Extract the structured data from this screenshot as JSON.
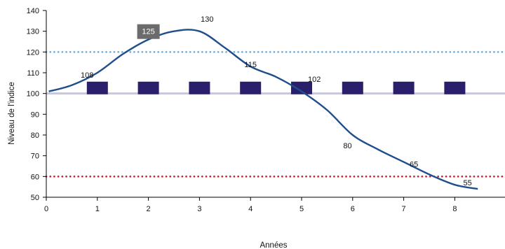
{
  "chart_data": {
    "type": "line",
    "title": "",
    "xlabel": "Années",
    "ylabel": "Niveau de l'indice",
    "xlim": [
      0,
      9
    ],
    "ylim": [
      50,
      140
    ],
    "x_ticks": [
      0,
      1,
      2,
      3,
      4,
      5,
      6,
      7,
      8
    ],
    "y_ticks": [
      50,
      60,
      70,
      80,
      90,
      100,
      110,
      120,
      130,
      140
    ],
    "grid": false,
    "legend": "none",
    "series": [
      {
        "color": "#1f4e8c",
        "points": [
          {
            "x": 0.05,
            "y": 101
          },
          {
            "x": 0.5,
            "y": 104
          },
          {
            "x": 1.0,
            "y": 110
          },
          {
            "x": 1.5,
            "y": 119
          },
          {
            "x": 2.0,
            "y": 126
          },
          {
            "x": 2.5,
            "y": 130
          },
          {
            "x": 3.0,
            "y": 130
          },
          {
            "x": 3.5,
            "y": 122
          },
          {
            "x": 4.0,
            "y": 113
          },
          {
            "x": 4.5,
            "y": 108
          },
          {
            "x": 5.0,
            "y": 101
          },
          {
            "x": 5.5,
            "y": 92
          },
          {
            "x": 6.0,
            "y": 80
          },
          {
            "x": 6.5,
            "y": 73
          },
          {
            "x": 7.0,
            "y": 67
          },
          {
            "x": 7.5,
            "y": 61
          },
          {
            "x": 8.0,
            "y": 56
          },
          {
            "x": 8.45,
            "y": 54
          }
        ]
      }
    ],
    "reference_lines": [
      {
        "y": 120,
        "color": "#6aaee0",
        "style": "dotted"
      },
      {
        "y": 100,
        "color": "#c8c8d8",
        "style": "solid"
      },
      {
        "y": 60,
        "color": "#c0222a",
        "style": "dotted"
      }
    ],
    "markers": {
      "color": "#2a1f6b",
      "y": 103,
      "x": [
        1,
        2,
        3,
        4,
        5,
        6,
        7,
        8
      ]
    },
    "annotations": [
      {
        "text": "108",
        "x": 0.8,
        "y": 109,
        "boxed": false
      },
      {
        "text": "125",
        "x": 2.0,
        "y": 130,
        "boxed": true,
        "box_color": "#6b6b6b"
      },
      {
        "text": "130",
        "x": 3.15,
        "y": 136,
        "boxed": false
      },
      {
        "text": "115",
        "x": 4.0,
        "y": 114,
        "boxed": false
      },
      {
        "text": "102",
        "x": 5.25,
        "y": 107,
        "boxed": false
      },
      {
        "text": "80",
        "x": 5.9,
        "y": 75,
        "boxed": false
      },
      {
        "text": "65",
        "x": 7.2,
        "y": 66,
        "boxed": false
      },
      {
        "text": "55",
        "x": 8.25,
        "y": 57,
        "boxed": false
      }
    ]
  }
}
